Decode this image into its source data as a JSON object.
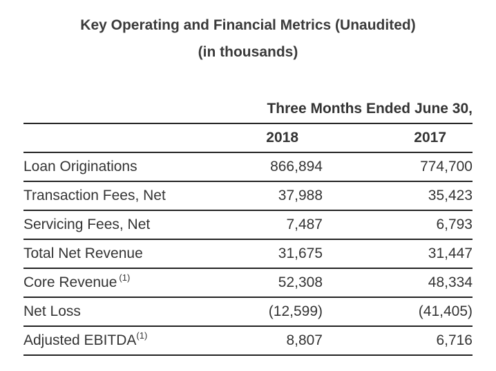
{
  "title": "Key Operating and Financial Metrics (Unaudited)",
  "subtitle": "(in thousands)",
  "period_header": "Three Months Ended June 30,",
  "columns": [
    "2018",
    "2017"
  ],
  "rows": [
    {
      "label": "Loan Originations",
      "footnote": "",
      "values": [
        "866,894",
        "774,700"
      ]
    },
    {
      "label": "Transaction Fees, Net",
      "footnote": "",
      "values": [
        "37,988",
        "35,423"
      ]
    },
    {
      "label": "Servicing Fees, Net",
      "footnote": "",
      "values": [
        "7,487",
        "6,793"
      ]
    },
    {
      "label": "Total Net Revenue",
      "footnote": "",
      "values": [
        "31,675",
        "31,447"
      ]
    },
    {
      "label": "Core Revenue",
      "footnote": "(1)",
      "values": [
        "52,308",
        "48,334"
      ]
    },
    {
      "label": "Net Loss",
      "footnote": "",
      "values": [
        "(12,599)",
        "(41,405)"
      ]
    },
    {
      "label": "Adjusted EBITDA",
      "footnote": "(1)",
      "values": [
        "8,807",
        "6,716"
      ]
    }
  ]
}
